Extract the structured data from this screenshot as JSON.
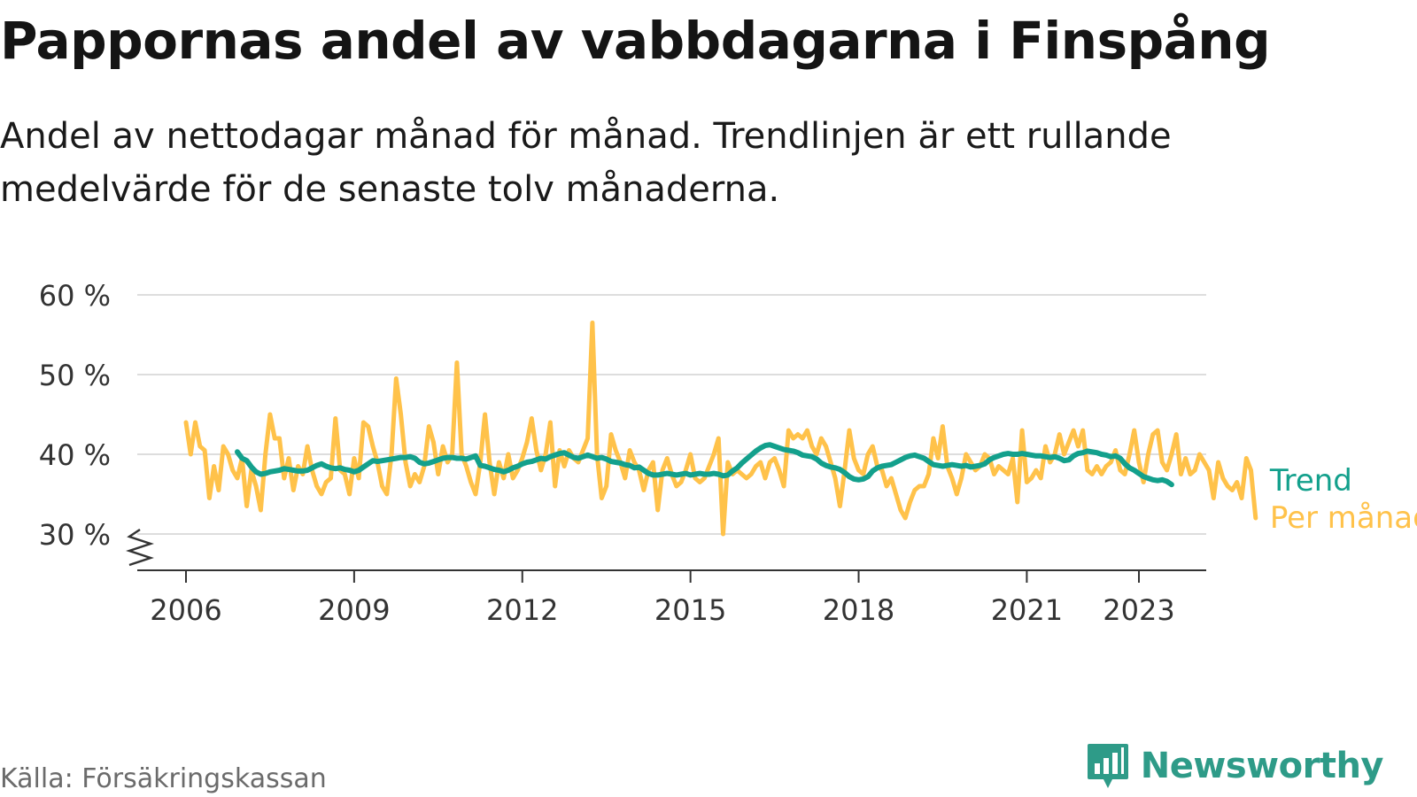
{
  "header": {
    "title": "Pappornas andel av vabbdagarna i Finspång",
    "subtitle": "Andel av nettodagar månad för månad. Trendlinjen är ett rullande medelvärde för de senaste tolv månaderna."
  },
  "footer": {
    "source": "Källa: Försäkringskassan",
    "brand": "Newsworthy",
    "brand_icon": "bar-chart-logo-icon"
  },
  "colors": {
    "monthly": "#ffc24a",
    "trend": "#13a08c",
    "grid": "#dddddd",
    "axis": "#333333",
    "brand": "#2e9b88"
  },
  "chart_data": {
    "type": "line",
    "y_axis": {
      "ylim": [
        30,
        60
      ],
      "ticks": [
        "30 %",
        "40 %",
        "50 %",
        "60 %"
      ],
      "tick_values": [
        30,
        40,
        50,
        60
      ],
      "broken_axis": true
    },
    "x_axis": {
      "ticks": [
        "2006",
        "2009",
        "2012",
        "2015",
        "2018",
        "2021",
        "2023"
      ],
      "tick_values": [
        2006,
        2009,
        2012,
        2015,
        2018,
        2021,
        2023
      ]
    },
    "grid": "horizontal",
    "series": [
      {
        "name": "Trend",
        "start": 2006.917,
        "step": 0.08333,
        "values": [
          40.3,
          39.5,
          39.2,
          38.4,
          37.8,
          37.5,
          37.6,
          37.8,
          37.9,
          38.0,
          38.2,
          38.1,
          38.0,
          37.9,
          37.9,
          38.0,
          38.3,
          38.6,
          38.8,
          38.5,
          38.3,
          38.2,
          38.3,
          38.1,
          38.0,
          37.8,
          38.0,
          38.4,
          38.8,
          39.2,
          39.1,
          39.2,
          39.3,
          39.4,
          39.5,
          39.6,
          39.6,
          39.7,
          39.5,
          39.0,
          38.8,
          38.9,
          39.1,
          39.3,
          39.5,
          39.6,
          39.6,
          39.5,
          39.5,
          39.4,
          39.6,
          39.8,
          38.6,
          38.5,
          38.3,
          38.1,
          38.0,
          37.8,
          38.0,
          38.3,
          38.5,
          38.8,
          39.0,
          39.1,
          39.3,
          39.5,
          39.4,
          39.7,
          39.9,
          40.1,
          40.2,
          39.9,
          39.6,
          39.5,
          39.7,
          39.9,
          39.7,
          39.5,
          39.6,
          39.4,
          39.1,
          39.0,
          38.9,
          38.7,
          38.6,
          38.3,
          38.4,
          38.0,
          37.6,
          37.4,
          37.4,
          37.5,
          37.6,
          37.5,
          37.4,
          37.5,
          37.6,
          37.4,
          37.5,
          37.6,
          37.5,
          37.5,
          37.6,
          37.5,
          37.3,
          37.4,
          37.9,
          38.3,
          38.9,
          39.4,
          39.9,
          40.4,
          40.8,
          41.1,
          41.2,
          41.0,
          40.8,
          40.6,
          40.5,
          40.4,
          40.2,
          39.9,
          39.8,
          39.7,
          39.4,
          38.9,
          38.6,
          38.4,
          38.3,
          38.1,
          37.7,
          37.2,
          36.9,
          36.8,
          36.9,
          37.2,
          37.9,
          38.3,
          38.5,
          38.6,
          38.7,
          39.0,
          39.3,
          39.6,
          39.8,
          39.9,
          39.7,
          39.5,
          39.1,
          38.7,
          38.6,
          38.5,
          38.6,
          38.7,
          38.6,
          38.5,
          38.6,
          38.4,
          38.5,
          38.6,
          38.8,
          39.3,
          39.6,
          39.8,
          40.0,
          40.1,
          40.0,
          40.0,
          40.1,
          40.0,
          39.9,
          39.8,
          39.8,
          39.7,
          39.6,
          39.7,
          39.5,
          39.2,
          39.3,
          39.8,
          40.1,
          40.2,
          40.4,
          40.3,
          40.2,
          40.0,
          39.9,
          39.7,
          39.8,
          39.5,
          38.8,
          38.3,
          38.0,
          37.6,
          37.2,
          37.0,
          36.8,
          36.7,
          36.8,
          36.6,
          36.2
        ]
      },
      {
        "name": "Per månad",
        "start": 2006.0,
        "step": 0.08333,
        "values": [
          44.0,
          40.0,
          44.0,
          41.0,
          40.5,
          34.5,
          38.5,
          35.5,
          41.0,
          40.0,
          38.0,
          37.0,
          39.5,
          33.5,
          38.0,
          36.0,
          33.0,
          40.0,
          45.0,
          42.0,
          42.0,
          37.0,
          39.5,
          35.5,
          38.5,
          37.5,
          41.0,
          38.0,
          36.0,
          35.0,
          36.5,
          37.0,
          44.5,
          38.0,
          37.5,
          35.0,
          39.5,
          37.0,
          44.0,
          43.5,
          41.0,
          39.0,
          36.0,
          35.0,
          40.0,
          49.5,
          45.0,
          39.0,
          36.0,
          37.5,
          36.5,
          38.5,
          43.5,
          41.5,
          37.5,
          41.0,
          39.0,
          40.0,
          51.5,
          40.0,
          38.5,
          36.5,
          35.0,
          39.0,
          45.0,
          39.0,
          35.0,
          39.0,
          37.0,
          40.0,
          37.0,
          38.0,
          39.5,
          41.5,
          44.5,
          40.5,
          38.0,
          40.0,
          44.0,
          36.0,
          40.5,
          38.5,
          40.5,
          39.5,
          39.0,
          40.5,
          42.0,
          56.5,
          40.0,
          34.5,
          36.0,
          42.5,
          40.5,
          39.0,
          37.0,
          40.5,
          39.0,
          38.0,
          35.5,
          38.0,
          39.0,
          33.0,
          38.0,
          39.5,
          37.5,
          36.0,
          36.5,
          38.0,
          40.0,
          37.0,
          36.5,
          37.0,
          38.5,
          40.0,
          42.0,
          30.0,
          39.0,
          37.5,
          38.0,
          37.5,
          37.0,
          37.5,
          38.5,
          39.0,
          37.0,
          39.0,
          39.5,
          38.0,
          36.0,
          43.0,
          42.0,
          42.5,
          42.0,
          43.0,
          41.0,
          40.0,
          42.0,
          41.0,
          39.0,
          37.0,
          33.5,
          38.0,
          43.0,
          39.5,
          38.0,
          37.5,
          40.0,
          41.0,
          38.5,
          38.0,
          36.0,
          37.0,
          35.0,
          33.0,
          32.0,
          34.0,
          35.5,
          36.0,
          36.0,
          37.5,
          42.0,
          39.5,
          43.5,
          38.5,
          37.0,
          35.0,
          37.0,
          40.0,
          39.0,
          38.0,
          38.5,
          40.0,
          39.5,
          37.5,
          38.5,
          38.0,
          37.5,
          39.5,
          34.0,
          43.0,
          36.5,
          37.0,
          38.0,
          37.0,
          41.0,
          39.0,
          40.0,
          42.5,
          40.0,
          41.5,
          43.0,
          41.0,
          43.0,
          38.0,
          37.5,
          38.5,
          37.5,
          38.5,
          39.0,
          40.5,
          38.0,
          37.5,
          40.0,
          43.0,
          39.0,
          36.5,
          40.0,
          42.5,
          43.0,
          39.0,
          38.0,
          40.0,
          42.5,
          37.5,
          39.5,
          37.5,
          38.0,
          40.0,
          39.0,
          38.0,
          34.5,
          39.0,
          37.0,
          36.0,
          35.5,
          36.5,
          34.5,
          39.5,
          38.0,
          32.0
        ]
      }
    ],
    "legend": [
      "Trend",
      "Per månad"
    ],
    "legend_placement": "end of lines, right"
  }
}
